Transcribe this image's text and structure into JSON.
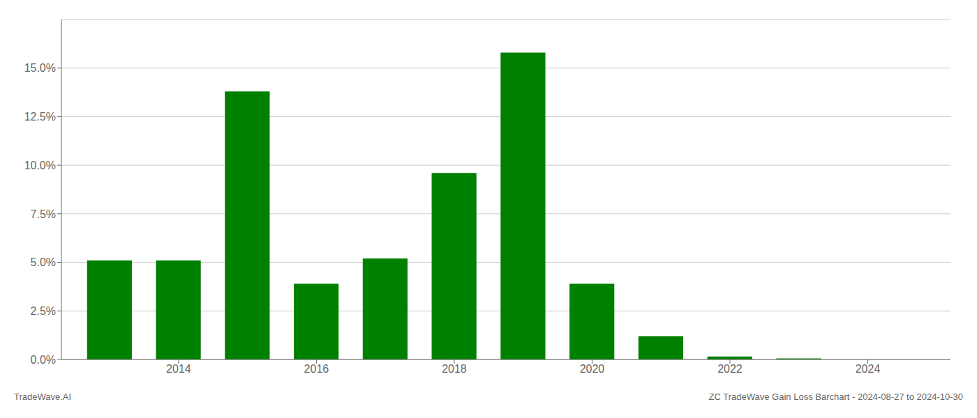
{
  "chart_data": {
    "type": "bar",
    "x": [
      2013,
      2014,
      2015,
      2016,
      2017,
      2018,
      2019,
      2020,
      2021,
      2022,
      2023,
      2024
    ],
    "values": [
      0.051,
      0.051,
      0.138,
      0.039,
      0.052,
      0.096,
      0.158,
      0.039,
      0.012,
      0.0015,
      0.0005,
      0.0
    ],
    "color": "#008000",
    "xlim": [
      2012.3,
      2025.2
    ],
    "xticks": [
      2014,
      2016,
      2018,
      2020,
      2022,
      2024
    ],
    "ylim": [
      0,
      0.175
    ],
    "yticks": [
      {
        "value": 0.0,
        "label": "0.0%"
      },
      {
        "value": 0.025,
        "label": "2.5%"
      },
      {
        "value": 0.05,
        "label": "5.0%"
      },
      {
        "value": 0.075,
        "label": "7.5%"
      },
      {
        "value": 0.1,
        "label": "10.0%"
      },
      {
        "value": 0.125,
        "label": "12.5%"
      },
      {
        "value": 0.15,
        "label": "15.0%"
      }
    ],
    "grid": true,
    "annotations": [
      "TradeWave.AI",
      "ZC TradeWave Gain Loss Barchart - 2024-08-27 to 2024-10-30"
    ]
  }
}
